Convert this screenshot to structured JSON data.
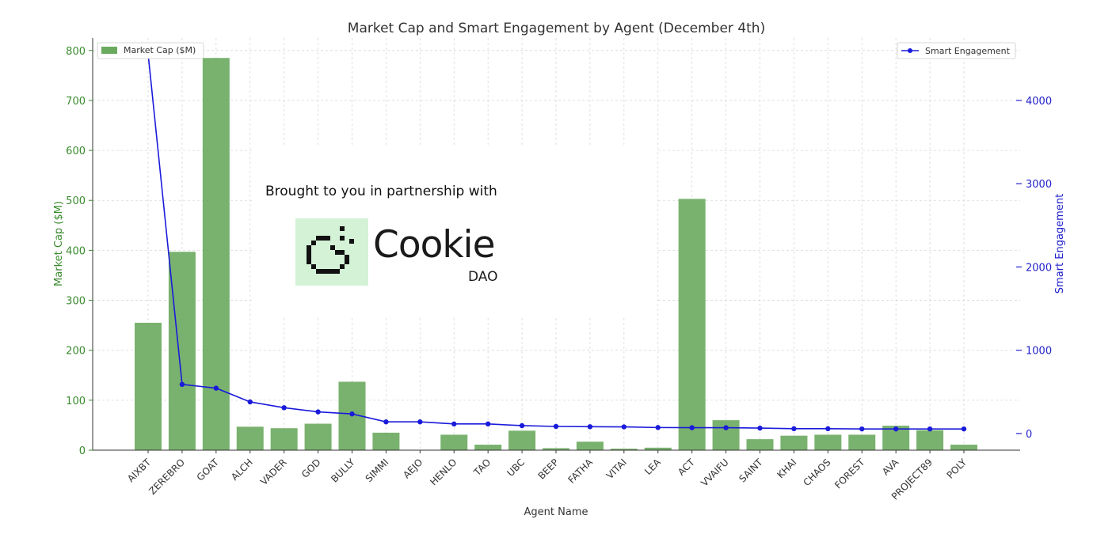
{
  "chart_data": {
    "type": "bar",
    "title": "Market Cap and Smart Engagement by Agent (December 4th)",
    "xlabel": "Agent Name",
    "ylabel": "Market Cap ($M)",
    "y2label": "Smart Engagement",
    "categories": [
      "AIXBT",
      "ZEREBRO",
      "GOAT",
      "ALCH",
      "VADER",
      "GOD",
      "BULLY",
      "SIMMI",
      "AEJO",
      "HENLO",
      "TAO",
      "UBC",
      "BEEP",
      "FATHA",
      "VITAI",
      "LEA",
      "ACT",
      "VVAIFU",
      "SAINT",
      "KHAI",
      "CHAOS",
      "FOREST",
      "AVA",
      "PROJECT89",
      "POLY"
    ],
    "ylim": [
      0,
      825
    ],
    "y2lim": [
      -200,
      4750
    ],
    "yticks": [
      0,
      100,
      200,
      300,
      400,
      500,
      600,
      700,
      800
    ],
    "y2ticks": [
      0,
      1000,
      2000,
      3000,
      4000
    ],
    "grid": true,
    "series": [
      {
        "name": "Market Cap ($M)",
        "type": "bar",
        "axis": "left",
        "color": "#6aaa5e",
        "values": [
          255,
          397,
          785,
          47,
          44,
          53,
          137,
          35,
          0,
          31,
          11,
          39,
          4,
          17,
          3,
          5,
          503,
          60,
          22,
          29,
          31,
          31,
          49,
          40,
          11
        ],
        "legend_position": "top-left"
      },
      {
        "name": "Smart Engagement",
        "type": "line",
        "axis": "right",
        "color": "#1a1adb",
        "values": [
          4560,
          590,
          545,
          380,
          310,
          260,
          235,
          140,
          140,
          115,
          115,
          95,
          85,
          82,
          80,
          72,
          70,
          70,
          65,
          58,
          58,
          55,
          55,
          55,
          55
        ],
        "legend_position": "top-right"
      }
    ]
  },
  "overlay": {
    "tagline": "Brought to you in partnership with",
    "logo_word": "Cookie",
    "logo_sub": "DAO",
    "logo_bg": "#d3f2d6"
  },
  "colors": {
    "left_axis": "#3a8a2e",
    "right_axis": "#2222cc",
    "grid": "#d8d8d8"
  }
}
